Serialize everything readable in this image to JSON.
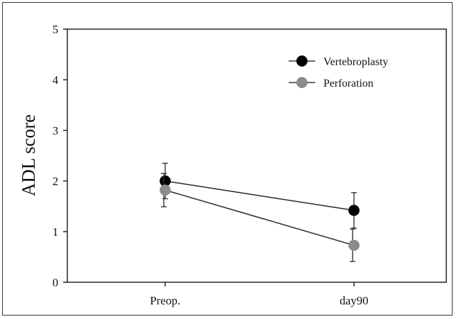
{
  "chart_data": {
    "type": "line",
    "title": "",
    "xlabel": "",
    "ylabel": "ADL score",
    "categories": [
      "Preop.",
      "day90"
    ],
    "ylim": [
      0,
      5
    ],
    "yticks": [
      "0",
      "1",
      "2",
      "3",
      "4",
      "5"
    ],
    "grid": false,
    "legend_position": "top-right",
    "series": [
      {
        "name": "Vertebroplasty",
        "color": "#000000",
        "values": [
          2.0,
          1.42
        ],
        "error": [
          0.35,
          0.35
        ]
      },
      {
        "name": "Perforation",
        "color": "#8c8c8c",
        "values": [
          1.82,
          0.73
        ],
        "error": [
          0.33,
          0.32
        ]
      }
    ]
  }
}
